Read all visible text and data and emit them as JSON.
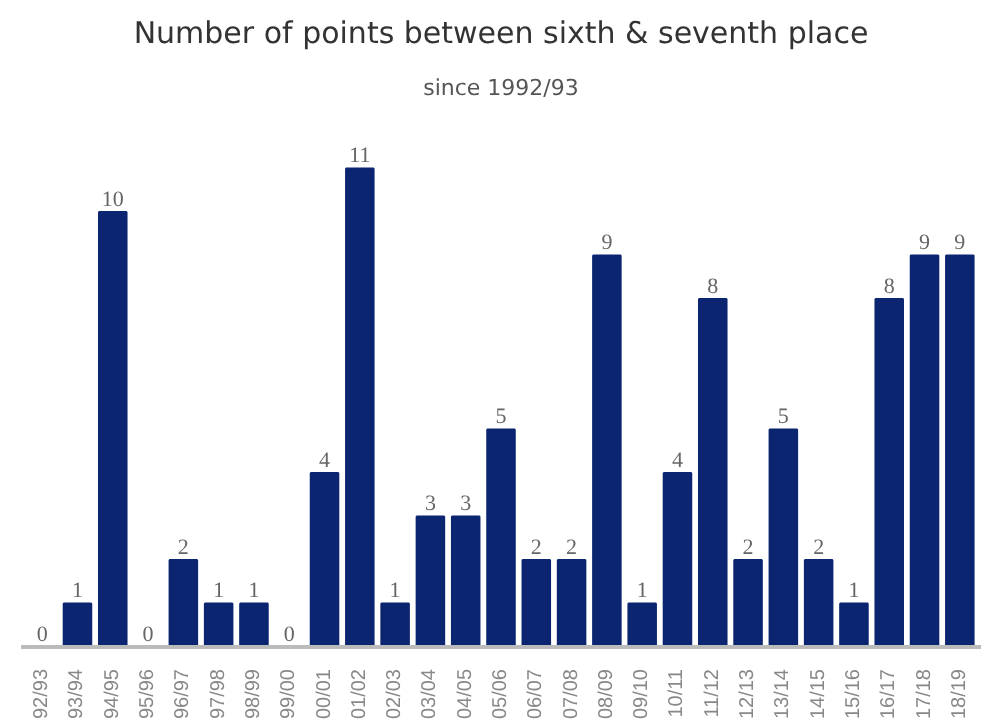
{
  "chart_data": {
    "type": "bar",
    "title": "Number of points between sixth & seventh place",
    "subtitle": "since 1992/93",
    "categories": [
      "92/93",
      "93/94",
      "94/95",
      "95/96",
      "96/97",
      "97/98",
      "98/99",
      "99/00",
      "00/01",
      "01/02",
      "02/03",
      "03/04",
      "04/05",
      "05/06",
      "06/07",
      "07/08",
      "08/09",
      "09/10",
      "10/11",
      "11/12",
      "12/13",
      "13/14",
      "14/15",
      "15/16",
      "16/17",
      "17/18",
      "18/19"
    ],
    "values": [
      0,
      1,
      10,
      0,
      2,
      1,
      1,
      0,
      4,
      11,
      1,
      3,
      3,
      5,
      2,
      2,
      9,
      1,
      4,
      8,
      2,
      5,
      2,
      1,
      8,
      9,
      9
    ],
    "color": "#0b2570",
    "data_labels": true,
    "grid": false
  }
}
